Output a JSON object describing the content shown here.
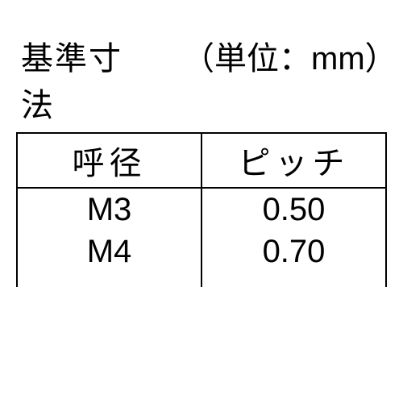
{
  "header": {
    "title": "基準寸法",
    "unit": "（単位：mm）"
  },
  "table": {
    "columns": [
      "呼径",
      "ピッチ"
    ],
    "rows": [
      [
        "M3",
        "0.50"
      ],
      [
        "M4",
        "0.70"
      ]
    ],
    "border_color": "#000000",
    "text_color": "#000000",
    "background_color": "#ffffff",
    "font_size_pt": 30,
    "col_widths_pct": [
      50,
      50
    ],
    "alignment": [
      "center",
      "center"
    ]
  }
}
